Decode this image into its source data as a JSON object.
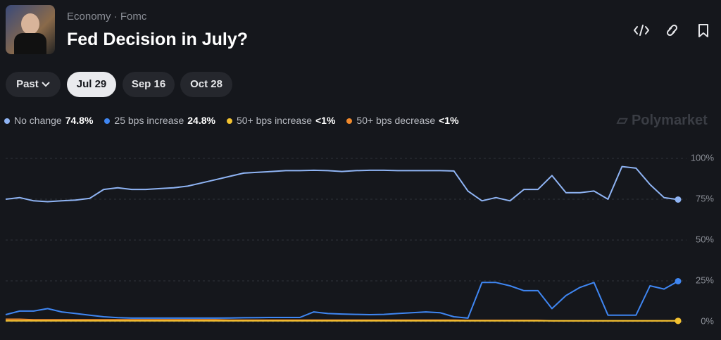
{
  "header": {
    "category": "Economy",
    "tag": "Fomc",
    "title": "Fed Decision in July?"
  },
  "tabs": [
    "Past",
    "Jul 29",
    "Sep 16",
    "Oct 28"
  ],
  "selected_tab": 1,
  "watermark": "Polymarket",
  "chart_data": {
    "type": "line",
    "categories": [
      null,
      null,
      null,
      null,
      null,
      null,
      null,
      null,
      null,
      null,
      null,
      null,
      null,
      null,
      null,
      null,
      null,
      null,
      null,
      null,
      null,
      null,
      null,
      null,
      null,
      null,
      null,
      null,
      null,
      null,
      null,
      null,
      null,
      null,
      null,
      null,
      null,
      null,
      null,
      null,
      null,
      null,
      null,
      null,
      null,
      null,
      null,
      null,
      null
    ],
    "series": [
      {
        "name": "No change",
        "color": "#8fb4f4",
        "legend_label": "74.8%",
        "values": [
          75,
          76,
          74,
          73.5,
          74,
          74.5,
          75.5,
          81,
          82,
          81,
          81,
          81.5,
          82,
          83,
          85,
          87,
          89,
          91,
          91.5,
          92,
          92.5,
          92.5,
          92.7,
          92.5,
          92,
          92.5,
          92.7,
          92.7,
          92.5,
          92.5,
          92.5,
          92.5,
          92.3,
          80,
          74,
          76,
          74,
          81,
          81,
          89.5,
          79,
          79,
          80,
          75,
          95,
          94,
          84,
          76,
          74.8
        ]
      },
      {
        "name": "25 bps increase",
        "color": "#3f86f2",
        "legend_label": "24.8%",
        "values": [
          4.3,
          6.5,
          6.5,
          8,
          6,
          5,
          4,
          3,
          2.5,
          2.2,
          2.2,
          2.2,
          2.2,
          2.2,
          2.2,
          2.2,
          2.3,
          2.4,
          2.5,
          2.6,
          2.6,
          2.6,
          6,
          5,
          4.7,
          4.5,
          4.3,
          4.5,
          5,
          5.5,
          6,
          5.5,
          3,
          2.2,
          24,
          24,
          22,
          19,
          19,
          8,
          16,
          21,
          24,
          4,
          4,
          4,
          22,
          20,
          24.8
        ]
      },
      {
        "name": "50+ bps increase",
        "color": "#f2c230",
        "legend_label": "<1%",
        "values": [
          0.5,
          0.5,
          0.5,
          0.5,
          0.5,
          0.5,
          0.5,
          0.5,
          0.5,
          0.5,
          0.5,
          0.5,
          0.5,
          0.5,
          0.5,
          0.5,
          0.5,
          0.5,
          0.5,
          0.5,
          0.5,
          0.5,
          0.5,
          0.5,
          0.5,
          0.5,
          0.5,
          0.5,
          0.5,
          0.5,
          0.5,
          0.5,
          0.5,
          0.5,
          0.5,
          0.5,
          0.5,
          0.5,
          0.5,
          0.5,
          0.5,
          0.5,
          0.5,
          0.5,
          0.5,
          0.5,
          0.5,
          0.5,
          0.5
        ]
      },
      {
        "name": "50+ bps decrease",
        "color": "#f0892c",
        "legend_label": "<1%",
        "values": [
          1.5,
          1.5,
          1.2,
          1.2,
          1.2,
          1.2,
          1.2,
          1.2,
          1.2,
          1.2,
          1.2,
          1.2,
          1.2,
          1.2,
          1.2,
          1.2,
          1,
          1,
          1,
          1,
          1,
          1,
          1,
          1,
          1,
          1,
          1,
          1,
          1,
          1,
          1,
          1,
          1,
          0.8,
          0.8,
          0.8,
          0.8,
          0.8,
          0.8,
          0.5,
          0.5,
          0.5,
          0.5,
          0.5,
          0.5,
          0.5,
          0.5,
          0.5,
          0.5
        ]
      }
    ],
    "ylim": [
      0,
      100
    ],
    "yticks": [
      {
        "value": 0,
        "label": "0%"
      },
      {
        "value": 25,
        "label": "25%"
      },
      {
        "value": 50,
        "label": "50%"
      },
      {
        "value": 75,
        "label": "75%"
      },
      {
        "value": 100,
        "label": "100%"
      }
    ],
    "grid": true
  }
}
